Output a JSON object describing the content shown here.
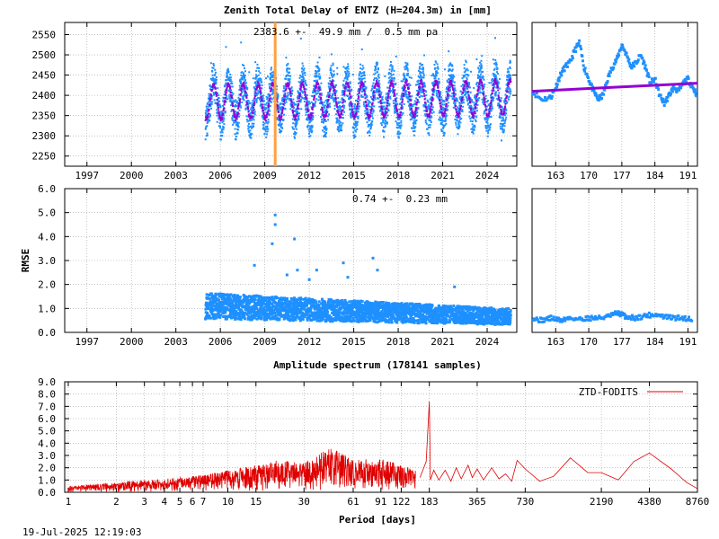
{
  "chart_data": [
    {
      "type": "scatter",
      "panel": "ztd-long",
      "title": "Zenith Total Delay of ENTZ (H=204.3m) in [mm]",
      "annotation": "2383.6 +-  49.9 mm /  0.5 mm pa",
      "xlim": [
        1995.5,
        2026.0
      ],
      "ylim": [
        2225,
        2580
      ],
      "x_ticks": [
        1997,
        2000,
        2003,
        2006,
        2009,
        2012,
        2015,
        2018,
        2021,
        2024
      ],
      "y_ticks": [
        2250,
        2300,
        2350,
        2400,
        2450,
        2500,
        2550
      ],
      "series": [
        {
          "color": "#1e90ff",
          "x": [
            2005.0,
            2025.6
          ],
          "mean": 2383.6,
          "seasonal_amplitude": 49.9,
          "trend_per_year": 0.5,
          "spread": 45
        },
        {
          "color": "#9400d3",
          "x": [
            2005.0,
            2025.6
          ],
          "mean": 2383.6,
          "seasonal_amplitude": 49.9,
          "trend_per_year": 0.5
        }
      ],
      "vertical_marker": {
        "x": 2009.7,
        "color": "#ffa040"
      }
    },
    {
      "type": "scatter",
      "panel": "ztd-recent",
      "xlim": [
        158,
        193
      ],
      "ylim": [
        2225,
        2580
      ],
      "x_ticks": [
        163,
        170,
        177,
        184,
        191
      ],
      "series": [
        {
          "color": "#1e90ff",
          "points": [
            [
              158,
              2410
            ],
            [
              160,
              2390
            ],
            [
              162,
              2395
            ],
            [
              163,
              2420
            ],
            [
              164,
              2450
            ],
            [
              165,
              2470
            ],
            [
              166,
              2480
            ],
            [
              167,
              2510
            ],
            [
              168,
              2530
            ],
            [
              169,
              2470
            ],
            [
              170,
              2440
            ],
            [
              171,
              2410
            ],
            [
              172,
              2390
            ],
            [
              173,
              2400
            ],
            [
              174,
              2440
            ],
            [
              175,
              2470
            ],
            [
              176,
              2490
            ],
            [
              177,
              2525
            ],
            [
              178,
              2500
            ],
            [
              179,
              2470
            ],
            [
              180,
              2480
            ],
            [
              181,
              2500
            ],
            [
              182,
              2470
            ],
            [
              183,
              2430
            ],
            [
              184,
              2440
            ],
            [
              185,
              2400
            ],
            [
              186,
              2380
            ],
            [
              187,
              2400
            ],
            [
              188,
              2420
            ],
            [
              189,
              2410
            ],
            [
              190,
              2430
            ],
            [
              191,
              2440
            ],
            [
              192,
              2420
            ],
            [
              193,
              2400
            ]
          ]
        },
        {
          "color": "#9400d3",
          "line": [
            [
              158,
              2410
            ],
            [
              193,
              2430
            ]
          ]
        }
      ]
    },
    {
      "type": "scatter",
      "panel": "rmse-long",
      "ylabel": "RMSE",
      "annotation": "0.74 +-  0.23 mm",
      "xlim": [
        1995.5,
        2026.0
      ],
      "ylim": [
        0.0,
        6.0
      ],
      "x_ticks": [
        1997,
        2000,
        2003,
        2006,
        2009,
        2012,
        2015,
        2018,
        2021,
        2024
      ],
      "y_ticks": [
        0.0,
        1.0,
        2.0,
        3.0,
        4.0,
        5.0,
        6.0
      ],
      "series": [
        {
          "color": "#1e90ff",
          "x": [
            2005.0,
            2025.6
          ],
          "mean_start": 1.1,
          "mean_end": 0.65
        },
        {
          "color": "#1e90ff",
          "outliers": [
            [
              2009.7,
              4.9
            ],
            [
              2009.7,
              4.5
            ],
            [
              2009.5,
              3.7
            ],
            [
              2008.3,
              2.8
            ],
            [
              2011.0,
              3.9
            ],
            [
              2011.2,
              2.6
            ],
            [
              2012.5,
              2.6
            ],
            [
              2014.3,
              2.9
            ],
            [
              2014.6,
              2.3
            ],
            [
              2016.3,
              3.1
            ],
            [
              2016.6,
              2.6
            ],
            [
              2021.8,
              1.9
            ],
            [
              2010.5,
              2.4
            ],
            [
              2012.0,
              2.2
            ]
          ]
        }
      ]
    },
    {
      "type": "scatter",
      "panel": "rmse-recent",
      "xlim": [
        158,
        193
      ],
      "ylim": [
        0.0,
        6.0
      ],
      "x_ticks": [
        163,
        170,
        177,
        184,
        191
      ],
      "series": [
        {
          "color": "#1e90ff",
          "points": [
            [
              158,
              0.6
            ],
            [
              160,
              0.5
            ],
            [
              162,
              0.6
            ],
            [
              164,
              0.5
            ],
            [
              166,
              0.6
            ],
            [
              168,
              0.55
            ],
            [
              170,
              0.6
            ],
            [
              172,
              0.6
            ],
            [
              174,
              0.65
            ],
            [
              176,
              0.8
            ],
            [
              177,
              0.75
            ],
            [
              178,
              0.65
            ],
            [
              180,
              0.6
            ],
            [
              182,
              0.7
            ],
            [
              184,
              0.75
            ],
            [
              186,
              0.65
            ],
            [
              188,
              0.6
            ],
            [
              190,
              0.6
            ],
            [
              192,
              0.55
            ]
          ]
        }
      ]
    },
    {
      "type": "line",
      "panel": "spectrum",
      "title": "Amplitude spectrum (178141 samples)",
      "xlabel": "Period [days]",
      "xscale": "log",
      "xlim": [
        0.95,
        8760
      ],
      "ylim": [
        0.0,
        9.0
      ],
      "x_ticks": [
        1,
        2,
        3,
        4,
        5,
        6,
        7,
        10,
        15,
        30,
        61,
        91,
        122,
        183,
        365,
        730,
        2190,
        4380,
        8760
      ],
      "y_ticks": [
        0.0,
        1.0,
        2.0,
        3.0,
        4.0,
        5.0,
        6.0,
        7.0,
        8.0,
        9.0
      ],
      "legend": "top-right",
      "series": [
        {
          "name": "ZTD-FODITS",
          "color": "#e00000",
          "peaks": [
            [
              1,
              0.5
            ],
            [
              2,
              0.8
            ],
            [
              3,
              1.0
            ],
            [
              5,
              1.2
            ],
            [
              7,
              1.4
            ],
            [
              10,
              1.8
            ],
            [
              15,
              2.2
            ],
            [
              20,
              2.6
            ],
            [
              30,
              2.5
            ],
            [
              45,
              3.7
            ],
            [
              61,
              2.6
            ],
            [
              91,
              2.8
            ],
            [
              122,
              2.2
            ],
            [
              150,
              1.8
            ],
            [
              183,
              7.4
            ],
            [
              190,
              1.5
            ],
            [
              230,
              1.8
            ],
            [
              270,
              2.0
            ],
            [
              320,
              2.2
            ],
            [
              365,
              1.9
            ],
            [
              450,
              2.0
            ],
            [
              550,
              1.5
            ],
            [
              650,
              2.6
            ],
            [
              730,
              1.9
            ],
            [
              900,
              0.9
            ],
            [
              1100,
              1.3
            ],
            [
              1400,
              2.8
            ],
            [
              1800,
              1.6
            ],
            [
              2190,
              1.6
            ],
            [
              2800,
              1.0
            ],
            [
              3500,
              2.5
            ],
            [
              4380,
              3.2
            ],
            [
              6000,
              1.9
            ],
            [
              7500,
              0.8
            ],
            [
              8760,
              0.3
            ]
          ]
        }
      ]
    }
  ],
  "timestamp": "19-Jul-2025 12:19:03"
}
